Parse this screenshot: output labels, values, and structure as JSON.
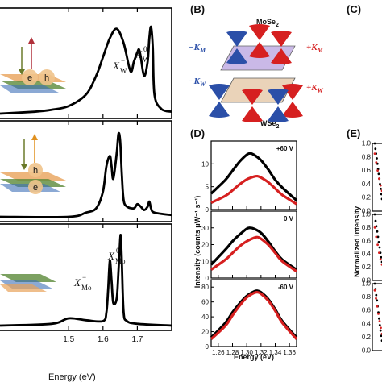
{
  "panels": {
    "B": {
      "letter": "(B)",
      "top_label": "MoSe",
      "top_sub": "2",
      "bottom_label": "WSe",
      "bottom_sub": "2",
      "k_minus_M": "−K",
      "k_minus_M_sub": "M",
      "k_plus_M": "+K",
      "k_plus_M_sub": "M",
      "k_minus_W": "−K",
      "k_minus_W_sub": "W",
      "k_plus_W": "+K",
      "k_plus_W_sub": "W"
    },
    "C": {
      "letter": "(C)"
    },
    "D": {
      "letter": "(D)"
    },
    "E": {
      "letter": "(E)"
    }
  },
  "annotations": {
    "xw_minus": "X",
    "xw_minus_sub": "W",
    "xw_minus_sup": "−",
    "xw_zero": "X",
    "xw_zero_sub": "W",
    "xw_zero_sup": "0",
    "xmo_minus": "X",
    "xmo_minus_sub": "Mo",
    "xmo_minus_sup": "−",
    "xmo_zero": "X",
    "xmo_zero_sub": "Mo",
    "xmo_zero_sup": "0",
    "exciton_e": "e",
    "exciton_h": "h"
  },
  "colors": {
    "black": "#000000",
    "red": "#d62020",
    "blue": "#2b4fa8",
    "purple": "#b9a2e0",
    "tan": "#e6c9a8",
    "orange": "#e8a25a",
    "green": "#5b8a3a"
  },
  "chart_data": [
    {
      "id": "A",
      "type": "line",
      "xlabel": "Energy (eV)",
      "xlim": [
        1.3,
        1.8
      ],
      "xticks": [
        1.5,
        1.6,
        1.7
      ],
      "subplots": [
        {
          "name": "WSe2 top",
          "series": [
            {
              "color": "#000000",
              "x": [
                1.3,
                1.4,
                1.45,
                1.5,
                1.55,
                1.58,
                1.6,
                1.62,
                1.64,
                1.66,
                1.68,
                1.69,
                1.7,
                1.705,
                1.71,
                1.72,
                1.73,
                1.735,
                1.74,
                1.745,
                1.75,
                1.77,
                1.8
              ],
              "y": [
                0.0,
                0.02,
                0.04,
                0.08,
                0.2,
                0.4,
                0.6,
                0.8,
                0.9,
                0.75,
                0.45,
                0.55,
                0.65,
                0.68,
                0.6,
                0.4,
                0.55,
                0.8,
                0.92,
                0.7,
                0.2,
                0.05,
                0.02
              ]
            }
          ]
        },
        {
          "name": "heterostructure",
          "series": [
            {
              "color": "#000000",
              "x": [
                1.3,
                1.5,
                1.55,
                1.58,
                1.6,
                1.61,
                1.62,
                1.625,
                1.63,
                1.64,
                1.645,
                1.65,
                1.655,
                1.66,
                1.67,
                1.69,
                1.7,
                1.71,
                1.72,
                1.73,
                1.735,
                1.74,
                1.75,
                1.8
              ],
              "y": [
                0.0,
                0.0,
                0.05,
                0.1,
                0.3,
                0.6,
                0.72,
                0.6,
                0.45,
                0.75,
                0.98,
                0.9,
                0.5,
                0.2,
                0.12,
                0.1,
                0.15,
                0.12,
                0.08,
                0.12,
                0.18,
                0.1,
                0.05,
                0.02
              ]
            }
          ]
        },
        {
          "name": "MoSe2 bottom",
          "series": [
            {
              "color": "#000000",
              "x": [
                1.3,
                1.45,
                1.5,
                1.55,
                1.6,
                1.61,
                1.615,
                1.62,
                1.625,
                1.63,
                1.64,
                1.645,
                1.65,
                1.652,
                1.655,
                1.66,
                1.67,
                1.7,
                1.8
              ],
              "y": [
                0.0,
                0.02,
                0.08,
                0.06,
                0.05,
                0.15,
                0.4,
                0.72,
                0.5,
                0.25,
                0.3,
                0.6,
                0.95,
                0.98,
                0.7,
                0.15,
                0.05,
                0.02,
                0.0
              ]
            }
          ]
        }
      ]
    },
    {
      "id": "D",
      "type": "line",
      "xlabel": "Energy (eV)",
      "ylabel": "Intensity  (counts μW⁻¹ s⁻¹)",
      "xlim": [
        1.25,
        1.37
      ],
      "xticks": [
        1.26,
        1.28,
        1.3,
        1.32,
        1.34,
        1.36
      ],
      "subplots": [
        {
          "name": "+60 V",
          "ylim": [
            0,
            15
          ],
          "yticks": [
            0,
            5,
            10
          ],
          "series": [
            {
              "color": "#000000",
              "x": [
                1.25,
                1.27,
                1.28,
                1.29,
                1.3,
                1.305,
                1.31,
                1.32,
                1.33,
                1.34,
                1.35,
                1.37
              ],
              "y": [
                3.5,
                6.5,
                8.5,
                10.5,
                12.0,
                12.3,
                12.0,
                10.8,
                8.8,
                6.5,
                4.8,
                2.0
              ]
            },
            {
              "color": "#d62020",
              "x": [
                1.25,
                1.27,
                1.28,
                1.29,
                1.3,
                1.31,
                1.315,
                1.32,
                1.33,
                1.34,
                1.35,
                1.37
              ],
              "y": [
                1.5,
                3.0,
                4.2,
                5.5,
                6.6,
                7.2,
                7.3,
                7.0,
                6.0,
                4.6,
                3.2,
                1.2
              ]
            }
          ]
        },
        {
          "name": "0 V",
          "ylim": [
            0,
            40
          ],
          "yticks": [
            0,
            10,
            20,
            30
          ],
          "series": [
            {
              "color": "#000000",
              "x": [
                1.25,
                1.27,
                1.28,
                1.29,
                1.3,
                1.305,
                1.31,
                1.32,
                1.33,
                1.34,
                1.35,
                1.37
              ],
              "y": [
                8,
                17,
                22,
                26,
                29.5,
                30.0,
                29.5,
                27,
                22,
                16,
                11,
                5
              ]
            },
            {
              "color": "#d62020",
              "x": [
                1.25,
                1.27,
                1.28,
                1.29,
                1.3,
                1.31,
                1.315,
                1.32,
                1.33,
                1.34,
                1.35,
                1.37
              ],
              "y": [
                5,
                11,
                15,
                19,
                22,
                24,
                24.5,
                23.5,
                20,
                15,
                10,
                4
              ]
            }
          ]
        },
        {
          "name": "-60 V",
          "ylim": [
            0,
            90
          ],
          "yticks": [
            0,
            20,
            40,
            60,
            80
          ],
          "series": [
            {
              "color": "#000000",
              "x": [
                1.25,
                1.27,
                1.28,
                1.29,
                1.3,
                1.31,
                1.315,
                1.32,
                1.33,
                1.34,
                1.35,
                1.37
              ],
              "y": [
                12,
                32,
                46,
                58,
                68,
                74,
                75,
                73,
                64,
                50,
                34,
                12
              ]
            },
            {
              "color": "#d62020",
              "x": [
                1.25,
                1.27,
                1.28,
                1.29,
                1.3,
                1.31,
                1.315,
                1.32,
                1.33,
                1.34,
                1.35,
                1.37
              ],
              "y": [
                10,
                28,
                42,
                55,
                66,
                72,
                73,
                71,
                62,
                48,
                32,
                10
              ]
            }
          ]
        }
      ]
    },
    {
      "id": "E",
      "type": "scatter",
      "ylabel": "Normalized intensity",
      "subplots": [
        {
          "ylim": [
            0,
            1.0
          ],
          "yticks": [
            0.0,
            0.2,
            0.4,
            0.6,
            0.8,
            1.0
          ],
          "series": [
            {
              "color": "#000000",
              "y": [
                1.0,
                0.92,
                0.85,
                0.78,
                0.7,
                0.62,
                0.55,
                0.48,
                0.4,
                0.33,
                0.25,
                0.18
              ]
            },
            {
              "color": "#d62020",
              "y": [
                0.85,
                0.72,
                0.6,
                0.48,
                0.38,
                0.3
              ]
            }
          ]
        },
        {
          "ylim": [
            0,
            1.0
          ],
          "yticks": [
            0.0,
            0.2,
            0.4,
            0.6,
            0.8,
            1.0
          ],
          "series": [
            {
              "color": "#000000",
              "y": [
                1.0,
                0.9,
                0.82,
                0.74,
                0.66,
                0.58,
                0.5,
                0.42,
                0.35,
                0.28
              ]
            },
            {
              "color": "#d62020",
              "y": [
                0.8,
                0.66,
                0.54,
                0.42,
                0.32,
                0.24
              ]
            }
          ]
        },
        {
          "ylim": [
            0,
            1.0
          ],
          "yticks": [
            0.0,
            0.2,
            0.4,
            0.6,
            0.8,
            1.0
          ],
          "series": [
            {
              "color": "#000000",
              "y": [
                1.0,
                0.92,
                0.83,
                0.75,
                0.66,
                0.57,
                0.48,
                0.38,
                0.3,
                0.22,
                0.15
              ]
            },
            {
              "color": "#d62020",
              "y": [
                0.9,
                0.78,
                0.66,
                0.55,
                0.44,
                0.34,
                0.25
              ]
            }
          ]
        }
      ]
    }
  ]
}
